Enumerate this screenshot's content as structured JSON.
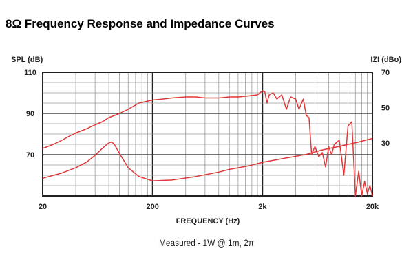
{
  "chart_data": {
    "type": "line",
    "title": "8Ω Frequency Response and Impedance Curves",
    "caption": "Measured - 1W @ 1m, 2π",
    "xlabel": "FREQUENCY (Hz)",
    "x_scale": "log",
    "xlim": [
      20,
      20000
    ],
    "x_tick_labels": [
      "20",
      "200",
      "2k",
      "20k"
    ],
    "x_ticks": [
      20,
      200,
      2000,
      20000
    ],
    "y_left": {
      "label": "SPL (dB)",
      "lim": [
        50,
        110
      ],
      "ticks": [
        110,
        90,
        70
      ]
    },
    "y_right": {
      "label": "IZI (dBo)",
      "lim": [
        0,
        70
      ],
      "ticks": [
        70,
        50,
        30
      ]
    },
    "grid": true,
    "line_color": "#e03838",
    "series": [
      {
        "axis": "left",
        "x": [
          20,
          25,
          30,
          35,
          40,
          50,
          60,
          70,
          80,
          90,
          100,
          120,
          150,
          200,
          250,
          300,
          400,
          500,
          600,
          700,
          800,
          1000,
          1200,
          1500,
          1800,
          2000,
          2100,
          2200,
          2300,
          2500,
          2700,
          3000,
          3300,
          3600,
          4000,
          4300,
          4700,
          5000,
          5300,
          5600,
          6000,
          6500,
          7000,
          7500,
          8000,
          8500,
          9000,
          10000,
          11000,
          12000,
          13000,
          14000,
          15000,
          16000,
          17000,
          18000,
          19000,
          20000
        ],
        "values": [
          73,
          75,
          77,
          79,
          80.5,
          82.5,
          84.5,
          86,
          88,
          89,
          90,
          92,
          95,
          96.5,
          97,
          97.5,
          98,
          98,
          97.5,
          97.5,
          97.5,
          98,
          98,
          98.5,
          99,
          101,
          100.5,
          95,
          99,
          100,
          97,
          99,
          92,
          98,
          97,
          92,
          97,
          89,
          88,
          70,
          74,
          69,
          71,
          64,
          74,
          70,
          75,
          77,
          60,
          84,
          86,
          50,
          62,
          50,
          57,
          51,
          55,
          50
        ]
      },
      {
        "axis": "right",
        "x": [
          20,
          30,
          40,
          50,
          60,
          70,
          80,
          85,
          90,
          100,
          120,
          150,
          200,
          300,
          500,
          800,
          1000,
          1500,
          2000,
          3000,
          5000,
          7000,
          10000,
          15000,
          20000
        ],
        "values": [
          10,
          13,
          16,
          19,
          23,
          27,
          30,
          30.5,
          29,
          24,
          16,
          11,
          8.5,
          9,
          11,
          13.5,
          15,
          17,
          19,
          21,
          23.5,
          26,
          28,
          30.5,
          32.5
        ]
      }
    ]
  }
}
